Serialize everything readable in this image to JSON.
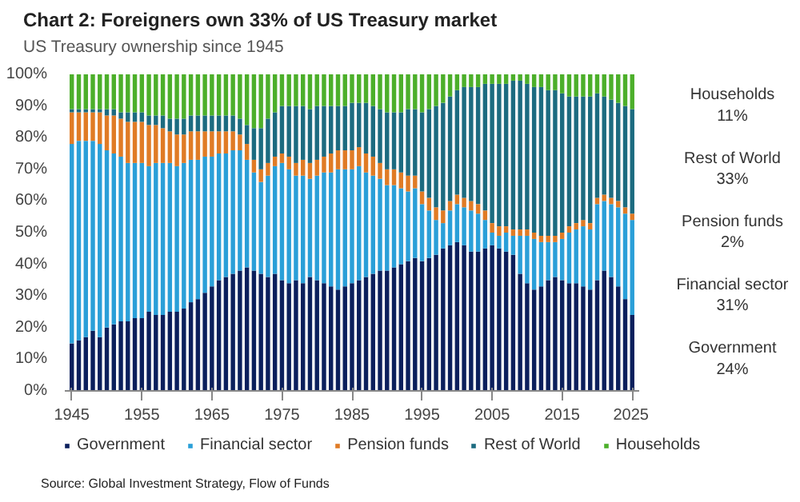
{
  "chart_data": {
    "type": "bar",
    "stacked": true,
    "title": "Chart 2: Foreigners own 33% of US Treasury market",
    "subtitle": "US Treasury ownership since 1945",
    "x": [
      1945,
      1946,
      1947,
      1948,
      1949,
      1950,
      1951,
      1952,
      1953,
      1954,
      1955,
      1956,
      1957,
      1958,
      1959,
      1960,
      1961,
      1962,
      1963,
      1964,
      1965,
      1966,
      1967,
      1968,
      1969,
      1970,
      1971,
      1972,
      1973,
      1974,
      1975,
      1976,
      1977,
      1978,
      1979,
      1980,
      1981,
      1982,
      1983,
      1984,
      1985,
      1986,
      1987,
      1988,
      1989,
      1990,
      1991,
      1992,
      1993,
      1994,
      1995,
      1996,
      1997,
      1998,
      1999,
      2000,
      2001,
      2002,
      2003,
      2004,
      2005,
      2006,
      2007,
      2008,
      2009,
      2010,
      2011,
      2012,
      2013,
      2014,
      2015,
      2016,
      2017,
      2018,
      2019,
      2020,
      2021,
      2022,
      2023,
      2024,
      2025
    ],
    "series": [
      {
        "name": "Government",
        "color": "#0b1f5c",
        "values": [
          15,
          16,
          17,
          19,
          17,
          20,
          21,
          22,
          22,
          23,
          23,
          25,
          24,
          24,
          25,
          25,
          26,
          28,
          29,
          31,
          33,
          35,
          36,
          37,
          38,
          39,
          38,
          37,
          36,
          37,
          35,
          34,
          35,
          34,
          36,
          35,
          34,
          33,
          32,
          33,
          34,
          35,
          36,
          37,
          38,
          38,
          39,
          40,
          41,
          42,
          41,
          42,
          43,
          45,
          46,
          47,
          46,
          44,
          44,
          45,
          46,
          45,
          44,
          43,
          37,
          34,
          32,
          33,
          35,
          36,
          35,
          34,
          34,
          33,
          32,
          35,
          38,
          36,
          33,
          29,
          24
        ]
      },
      {
        "name": "Financial sector",
        "color": "#2a9fd8",
        "values": [
          63,
          63,
          62,
          60,
          61,
          56,
          54,
          52,
          50,
          49,
          49,
          46,
          48,
          48,
          47,
          46,
          46,
          45,
          44,
          43,
          41,
          40,
          39,
          39,
          38,
          34,
          31,
          29,
          32,
          34,
          37,
          36,
          33,
          34,
          31,
          33,
          35,
          36,
          38,
          37,
          36,
          36,
          33,
          31,
          29,
          27,
          26,
          24,
          22,
          22,
          18,
          15,
          11,
          8,
          11,
          12,
          12,
          13,
          12,
          9,
          4,
          4,
          6,
          6,
          12,
          15,
          16,
          14,
          12,
          11,
          13,
          16,
          17,
          19,
          19,
          24,
          22,
          23,
          25,
          27,
          30
        ]
      },
      {
        "name": "Pension funds",
        "color": "#e07b25",
        "values": [
          10,
          9,
          9,
          9,
          10,
          11,
          12,
          12,
          13,
          13,
          13,
          13,
          12,
          11,
          10,
          10,
          9,
          9,
          9,
          8,
          8,
          7,
          7,
          6,
          5,
          5,
          4,
          4,
          4,
          3,
          3,
          4,
          4,
          5,
          5,
          5,
          5,
          6,
          6,
          6,
          6,
          6,
          6,
          6,
          5,
          5,
          5,
          5,
          5,
          4,
          4,
          4,
          4,
          4,
          3,
          3,
          3,
          3,
          3,
          3,
          3,
          3,
          2,
          2,
          2,
          2,
          2,
          2,
          2,
          2,
          2,
          2,
          2,
          2,
          2,
          2,
          2,
          2,
          2,
          2,
          2
        ]
      },
      {
        "name": "Rest of World",
        "color": "#1c6b80",
        "values": [
          1,
          1,
          1,
          1,
          1,
          2,
          2,
          2,
          3,
          3,
          3,
          3,
          3,
          4,
          4,
          5,
          5,
          5,
          5,
          5,
          5,
          5,
          5,
          5,
          5,
          6,
          10,
          13,
          14,
          14,
          15,
          16,
          18,
          17,
          17,
          17,
          16,
          15,
          14,
          14,
          15,
          14,
          16,
          16,
          17,
          18,
          18,
          19,
          21,
          21,
          25,
          28,
          32,
          34,
          33,
          33,
          35,
          36,
          37,
          40,
          44,
          45,
          45,
          47,
          47,
          46,
          46,
          47,
          46,
          46,
          44,
          41,
          40,
          39,
          40,
          33,
          31,
          31,
          31,
          32,
          33
        ]
      },
      {
        "name": "Households",
        "color": "#4caf2a",
        "values": [
          11,
          11,
          11,
          11,
          11,
          11,
          11,
          12,
          12,
          12,
          12,
          13,
          13,
          13,
          14,
          14,
          14,
          13,
          13,
          13,
          13,
          13,
          13,
          13,
          14,
          16,
          17,
          17,
          14,
          12,
          10,
          10,
          10,
          10,
          11,
          10,
          10,
          10,
          10,
          10,
          9,
          9,
          9,
          10,
          11,
          12,
          12,
          12,
          11,
          11,
          12,
          11,
          10,
          9,
          7,
          5,
          4,
          4,
          4,
          3,
          3,
          3,
          3,
          2,
          2,
          3,
          4,
          4,
          5,
          5,
          6,
          7,
          7,
          7,
          7,
          6,
          7,
          8,
          9,
          10,
          11
        ]
      }
    ],
    "xlim": [
      1944,
      2026
    ],
    "xticks": [
      1945,
      1955,
      1965,
      1975,
      1985,
      1995,
      2005,
      2015,
      2025
    ],
    "ylim": [
      0,
      100
    ],
    "yticks": [
      {
        "value": 0,
        "label": "0%"
      },
      {
        "value": 10,
        "label": "10%"
      },
      {
        "value": 20,
        "label": "20%"
      },
      {
        "value": 30,
        "label": "30%"
      },
      {
        "value": 40,
        "label": "40%"
      },
      {
        "value": 50,
        "label": "50%"
      },
      {
        "value": 60,
        "label": "60%"
      },
      {
        "value": 70,
        "label": "70%"
      },
      {
        "value": 80,
        "label": "80%"
      },
      {
        "value": 90,
        "label": "90%"
      },
      {
        "value": 100,
        "label": "100%"
      }
    ],
    "legend": "bottom",
    "annotations": [
      "Government\n24%",
      "Financial sector\n31%",
      "Pension funds\n2%",
      "Rest of World\n33%",
      "Households\n11%",
      "Source: Global Investment Strategy, Flow of Funds"
    ]
  }
}
